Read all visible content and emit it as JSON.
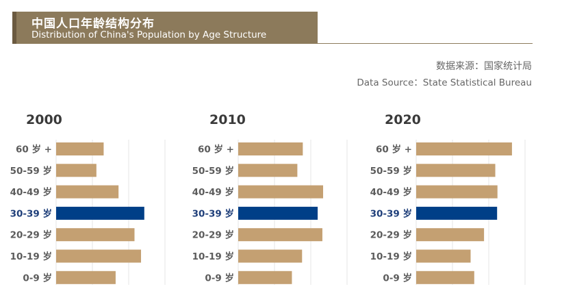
{
  "header": {
    "title_cn": "中国人口年龄结构分布",
    "title_en": "Distribution of China's Population by Age Structure"
  },
  "source": {
    "cn": "数据来源：国家统计局",
    "en": "Data Source：State Statistical Bureau"
  },
  "colors": {
    "title_bg": "#8c7a5b",
    "bar": "#c4a072",
    "highlight_bar": "#003f87",
    "highlight_label": "#1f3f7a",
    "label": "#5c5c5c",
    "year": "#3a3a3a",
    "grid": "#e4e4e4"
  },
  "chart_data": [
    {
      "type": "bar",
      "orientation": "horizontal",
      "title": "2000",
      "categories": [
        "60 岁 +",
        "50-59 岁",
        "40-49 岁",
        "30-39 岁",
        "20-29 岁",
        "10-19 岁",
        "0-9 岁"
      ],
      "values": [
        13.1,
        11.1,
        17.2,
        24.3,
        21.6,
        23.4,
        16.4
      ],
      "highlight": "30-39 岁",
      "xlim": [
        0,
        30
      ],
      "xlabel": "",
      "ylabel": ""
    },
    {
      "type": "bar",
      "orientation": "horizontal",
      "title": "2010",
      "categories": [
        "60 岁 +",
        "50-59 岁",
        "40-49 岁",
        "30-39 岁",
        "20-29 岁",
        "10-19 岁",
        "0-9 岁"
      ],
      "values": [
        17.8,
        16.3,
        23.4,
        21.9,
        23.2,
        17.6,
        14.8
      ],
      "highlight": "30-39 岁",
      "xlim": [
        0,
        30
      ],
      "xlabel": "",
      "ylabel": ""
    },
    {
      "type": "bar",
      "orientation": "horizontal",
      "title": "2020",
      "categories": [
        "60 岁 +",
        "50-59 岁",
        "40-49 岁",
        "30-39 岁",
        "20-29 岁",
        "10-19 岁",
        "0-9 岁"
      ],
      "values": [
        26.4,
        21.8,
        22.4,
        22.3,
        18.7,
        15.0,
        16.0
      ],
      "highlight": "30-39 岁",
      "xlim": [
        0,
        30
      ],
      "xlabel": "",
      "ylabel": ""
    }
  ]
}
